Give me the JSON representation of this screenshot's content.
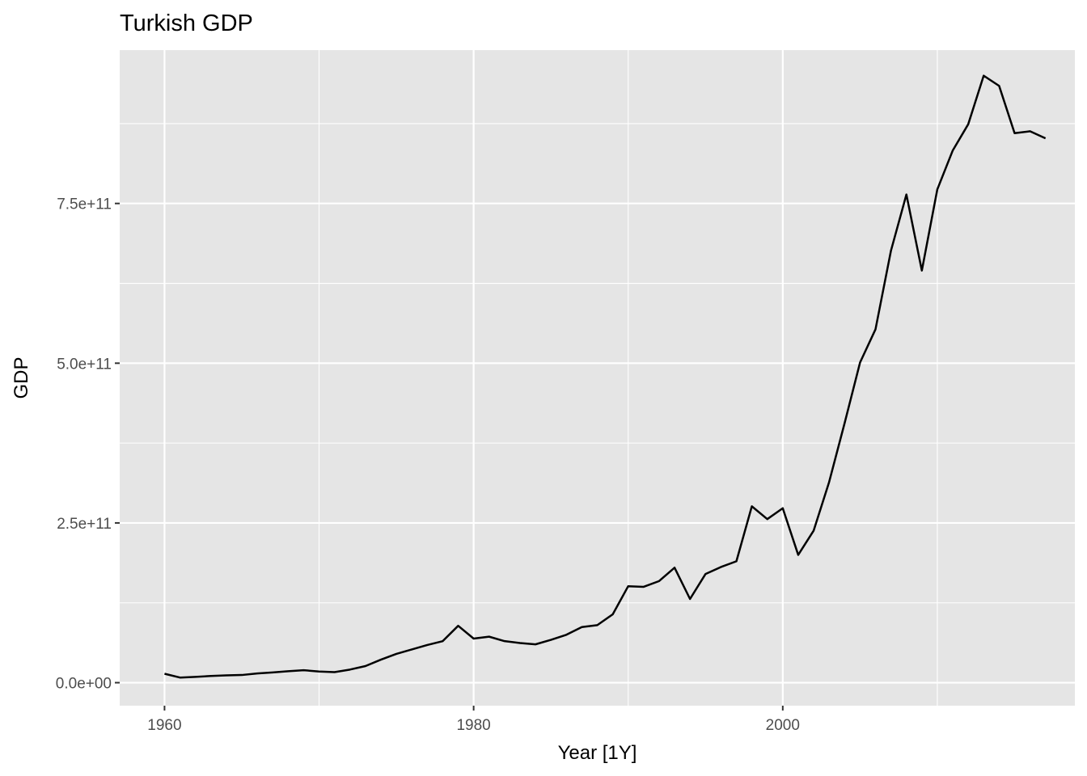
{
  "chart_data": {
    "type": "line",
    "title": "Turkish GDP",
    "xlabel": "Year [1Y]",
    "ylabel": "GDP",
    "xlim": [
      1957.1,
      2018.9
    ],
    "ylim": [
      -36000000000.0,
      990000000000.0
    ],
    "x_ticks": [
      1960,
      1980,
      2000
    ],
    "x_tick_labels": [
      "1960",
      "1980",
      "2000"
    ],
    "x_minor_ticks": [
      1970,
      1990,
      2010
    ],
    "y_ticks": [
      0,
      250000000000.0,
      500000000000.0,
      750000000000.0
    ],
    "y_tick_labels": [
      "0.0e+00",
      "2.5e+11",
      "5.0e+11",
      "7.5e+11"
    ],
    "y_minor_ticks": [
      125000000000.0,
      375000000000.0,
      625000000000.0,
      875000000000.0
    ],
    "grid": true,
    "legend": "none",
    "colors": {
      "panel": "#e5e5e5",
      "grid": "#ffffff",
      "line": "#000000"
    },
    "series": [
      {
        "x": [
          1960,
          1961,
          1962,
          1963,
          1964,
          1965,
          1966,
          1967,
          1968,
          1969,
          1970,
          1971,
          1972,
          1973,
          1974,
          1975,
          1976,
          1977,
          1978,
          1979,
          1980,
          1981,
          1982,
          1983,
          1984,
          1985,
          1986,
          1987,
          1988,
          1989,
          1990,
          1991,
          1992,
          1993,
          1994,
          1995,
          1996,
          1997,
          1998,
          1999,
          2000,
          2001,
          2002,
          2003,
          2004,
          2005,
          2006,
          2007,
          2008,
          2009,
          2010,
          2011,
          2012,
          2013,
          2014,
          2015,
          2016,
          2017
        ],
        "values": [
          14000000000.0,
          8000000000.0,
          9000000000.0,
          10500000000.0,
          11500000000.0,
          12000000000.0,
          14500000000.0,
          16000000000.0,
          18000000000.0,
          19500000000.0,
          17500000000.0,
          16500000000.0,
          20500000000.0,
          26000000000.0,
          36000000000.0,
          45000000000.0,
          52000000000.0,
          59000000000.0,
          65000000000.0,
          89000000000.0,
          69000000000.0,
          72000000000.0,
          65000000000.0,
          62000000000.0,
          60000000000.0,
          67000000000.0,
          75000000000.0,
          87000000000.0,
          90000000000.0,
          107000000000.0,
          151000000000.0,
          150000000000.0,
          159000000000.0,
          180000000000.0,
          131000000000.0,
          170000000000.0,
          181000000000.0,
          190000000000.0,
          276000000000.0,
          256000000000.0,
          273000000000.0,
          200000000000.0,
          238000000000.0,
          314000000000.0,
          406000000000.0,
          501000000000.0,
          553000000000.0,
          676000000000.0,
          764000000000.0,
          645000000000.0,
          772000000000.0,
          833000000000.0,
          874000000000.0,
          950000000000.0,
          934000000000.0,
          860000000000.0,
          863000000000.0,
          852000000000.0
        ]
      }
    ]
  }
}
